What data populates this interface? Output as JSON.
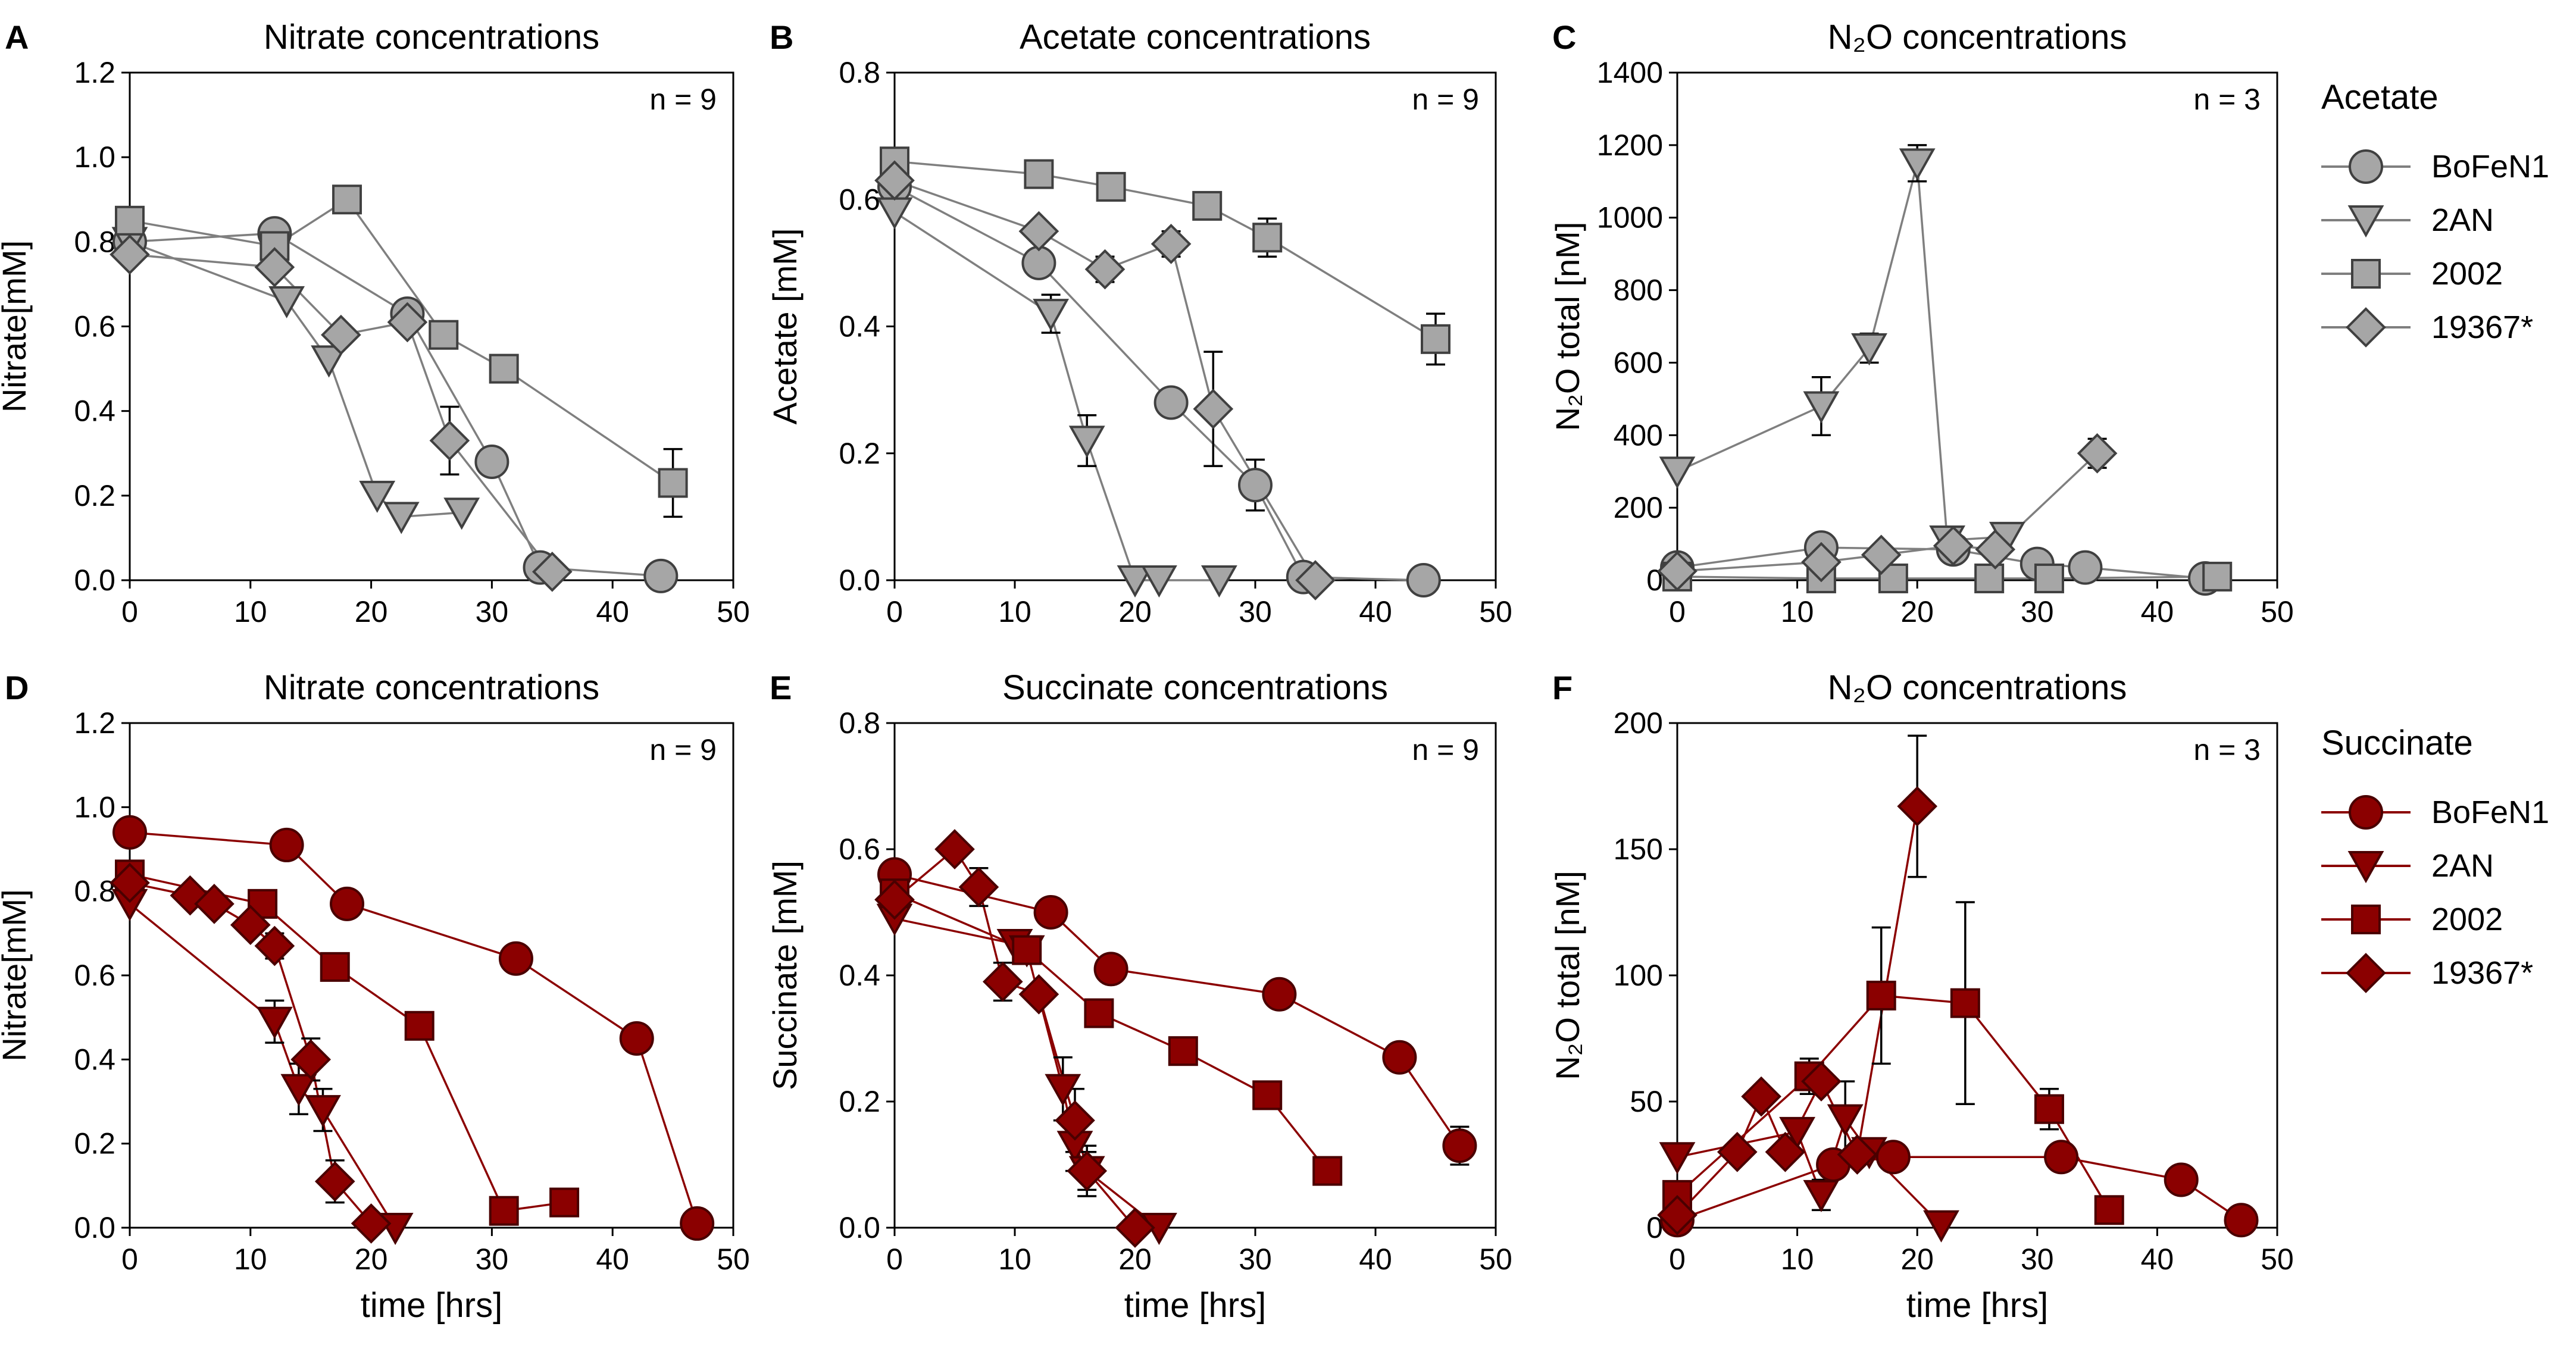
{
  "colors": {
    "acetate": "#a6a6a6",
    "acetate_dark": "#404040",
    "succinate": "#8b0000",
    "succinate_dark": "#4a0000"
  },
  "legends": [
    {
      "title": "Acetate",
      "scheme": "acetate",
      "items": [
        {
          "label": "BoFeN1",
          "marker": "circle"
        },
        {
          "label": "2AN",
          "marker": "triangle-down"
        },
        {
          "label": "2002",
          "marker": "square"
        },
        {
          "label": "19367*",
          "marker": "diamond"
        }
      ]
    },
    {
      "title": "Succinate",
      "scheme": "succinate",
      "items": [
        {
          "label": "BoFeN1",
          "marker": "circle"
        },
        {
          "label": "2AN",
          "marker": "triangle-down"
        },
        {
          "label": "2002",
          "marker": "square"
        },
        {
          "label": "19367*",
          "marker": "diamond"
        }
      ]
    }
  ],
  "chart_data": [
    {
      "panel": "A",
      "type": "line",
      "scheme": "acetate",
      "title": "Nitrate concentrations",
      "n_label": "n = 9",
      "xlabel": "",
      "ylabel": "Nitrate[mM]",
      "xlim": [
        0,
        50
      ],
      "ylim": [
        0,
        1.2
      ],
      "xticks": [
        "0",
        "10",
        "20",
        "30",
        "40",
        "50"
      ],
      "yticks": [
        "0.0",
        "0.2",
        "0.4",
        "0.6",
        "0.8",
        "1.0",
        "1.2"
      ],
      "series": [
        {
          "name": "BoFeN1",
          "marker": "circle",
          "x": [
            0,
            12,
            23,
            30,
            34,
            44
          ],
          "y": [
            0.8,
            0.82,
            0.63,
            0.28,
            0.03,
            0.01
          ],
          "err": [
            0,
            0,
            0,
            0,
            0,
            0
          ]
        },
        {
          "name": "2AN",
          "marker": "triangle-down",
          "x": [
            0,
            13,
            16.5,
            20.5,
            22.5,
            27.5
          ],
          "y": [
            0.8,
            0.66,
            0.52,
            0.2,
            0.15,
            0.16
          ],
          "err": [
            0,
            0,
            0,
            0,
            0,
            0
          ]
        },
        {
          "name": "2002",
          "marker": "square",
          "x": [
            0,
            12,
            18,
            26,
            31,
            45
          ],
          "y": [
            0.85,
            0.79,
            0.9,
            0.58,
            0.5,
            0.23
          ],
          "err": [
            0,
            0,
            0,
            0,
            0,
            0.08
          ]
        },
        {
          "name": "19367*",
          "marker": "diamond",
          "x": [
            0,
            12,
            17.5,
            23,
            26.5,
            35
          ],
          "y": [
            0.77,
            0.74,
            0.58,
            0.61,
            0.33,
            0.02
          ],
          "err": [
            0,
            0,
            0,
            0,
            0.08,
            0
          ]
        }
      ]
    },
    {
      "panel": "B",
      "type": "line",
      "scheme": "acetate",
      "title": "Acetate concentrations",
      "n_label": "n = 9",
      "xlabel": "",
      "ylabel": "Acetate [mM]",
      "xlim": [
        0,
        50
      ],
      "ylim": [
        0,
        0.8
      ],
      "xticks": [
        "0",
        "10",
        "20",
        "30",
        "40",
        "50"
      ],
      "yticks": [
        "0.0",
        "0.2",
        "0.4",
        "0.6",
        "0.8"
      ],
      "series": [
        {
          "name": "BoFeN1",
          "marker": "circle",
          "x": [
            0,
            12,
            23,
            30,
            34,
            44
          ],
          "y": [
            0.62,
            0.5,
            0.28,
            0.15,
            0.005,
            0.0
          ],
          "err": [
            0,
            0,
            0,
            0.04,
            0,
            0
          ]
        },
        {
          "name": "2AN",
          "marker": "triangle-down",
          "x": [
            0,
            13,
            16,
            20,
            22,
            27
          ],
          "y": [
            0.58,
            0.42,
            0.22,
            0.0,
            0.0,
            0.0
          ],
          "err": [
            0,
            0.03,
            0.04,
            0,
            0,
            0
          ]
        },
        {
          "name": "2002",
          "marker": "square",
          "x": [
            0,
            12,
            18,
            26,
            31,
            45
          ],
          "y": [
            0.66,
            0.64,
            0.62,
            0.59,
            0.54,
            0.38
          ],
          "err": [
            0,
            0,
            0,
            0,
            0.03,
            0.04
          ]
        },
        {
          "name": "19367*",
          "marker": "diamond",
          "x": [
            0,
            12,
            17.5,
            23,
            26.5,
            35
          ],
          "y": [
            0.63,
            0.55,
            0.49,
            0.53,
            0.27,
            0.0
          ],
          "err": [
            0,
            0,
            0.02,
            0.02,
            0.09,
            0
          ]
        }
      ]
    },
    {
      "panel": "C",
      "type": "line",
      "scheme": "acetate",
      "title": "N₂O concentrations",
      "n_label": "n = 3",
      "xlabel": "",
      "ylabel": "N₂O total [nM]",
      "xlim": [
        0,
        50
      ],
      "ylim": [
        0,
        1400
      ],
      "xticks": [
        "0",
        "10",
        "20",
        "30",
        "40",
        "50"
      ],
      "yticks": [
        "0",
        "200",
        "400",
        "600",
        "800",
        "1000",
        "1200",
        "1400"
      ],
      "series": [
        {
          "name": "BoFeN1",
          "marker": "circle",
          "x": [
            0,
            12,
            23,
            30,
            34,
            44
          ],
          "y": [
            35,
            90,
            85,
            45,
            35,
            5
          ],
          "err": [
            0,
            0,
            0,
            0,
            0,
            0
          ]
        },
        {
          "name": "2AN",
          "marker": "triangle-down",
          "x": [
            0,
            12,
            16,
            20,
            22.5,
            27.5
          ],
          "y": [
            300,
            480,
            640,
            1150,
            110,
            120
          ],
          "err": [
            0,
            80,
            40,
            50,
            0,
            0
          ]
        },
        {
          "name": "2002",
          "marker": "square",
          "x": [
            0,
            12,
            18,
            26,
            31,
            45
          ],
          "y": [
            10,
            5,
            5,
            5,
            5,
            10
          ],
          "err": [
            0,
            0,
            0,
            0,
            0,
            0
          ]
        },
        {
          "name": "19367*",
          "marker": "diamond",
          "x": [
            0,
            12,
            17,
            23,
            26.5,
            35
          ],
          "y": [
            25,
            50,
            70,
            95,
            85,
            350
          ],
          "err": [
            0,
            0,
            0,
            0,
            0,
            40
          ]
        }
      ]
    },
    {
      "panel": "D",
      "type": "line",
      "scheme": "succinate",
      "title": "Nitrate concentrations",
      "n_label": "n = 9",
      "xlabel": "time [hrs]",
      "ylabel": "Nitrate[mM]",
      "xlim": [
        0,
        50
      ],
      "ylim": [
        0,
        1.2
      ],
      "xticks": [
        "0",
        "10",
        "20",
        "30",
        "40",
        "50"
      ],
      "yticks": [
        "0.0",
        "0.2",
        "0.4",
        "0.6",
        "0.8",
        "1.0",
        "1.2"
      ],
      "series": [
        {
          "name": "BoFeN1",
          "marker": "circle",
          "x": [
            0,
            13,
            18,
            32,
            42,
            47
          ],
          "y": [
            0.94,
            0.91,
            0.77,
            0.64,
            0.45,
            0.01
          ],
          "err": [
            0,
            0,
            0,
            0,
            0,
            0
          ]
        },
        {
          "name": "2AN",
          "marker": "triangle-down",
          "x": [
            0,
            12,
            14,
            16,
            22
          ],
          "y": [
            0.77,
            0.49,
            0.33,
            0.28,
            0.0
          ],
          "err": [
            0,
            0.05,
            0.06,
            0.05,
            0
          ]
        },
        {
          "name": "2002",
          "marker": "square",
          "x": [
            0,
            11,
            17,
            24,
            31,
            36
          ],
          "y": [
            0.84,
            0.77,
            0.62,
            0.48,
            0.04,
            0.06
          ],
          "err": [
            0,
            0,
            0,
            0,
            0,
            0
          ]
        },
        {
          "name": "19367*",
          "marker": "diamond",
          "x": [
            0,
            5,
            7,
            10,
            12,
            15,
            17,
            20
          ],
          "y": [
            0.82,
            0.79,
            0.77,
            0.72,
            0.67,
            0.4,
            0.11,
            0.01
          ],
          "err": [
            0,
            0,
            0,
            0,
            0.03,
            0.05,
            0.05,
            0
          ]
        }
      ]
    },
    {
      "panel": "E",
      "type": "line",
      "scheme": "succinate",
      "title": "Succinate concentrations",
      "n_label": "n = 9",
      "xlabel": "time [hrs]",
      "ylabel": "Succinate [mM]",
      "xlim": [
        0,
        50
      ],
      "ylim": [
        0,
        0.8
      ],
      "xticks": [
        "0",
        "10",
        "20",
        "30",
        "40",
        "50"
      ],
      "yticks": [
        "0.0",
        "0.2",
        "0.4",
        "0.6",
        "0.8"
      ],
      "series": [
        {
          "name": "BoFeN1",
          "marker": "circle",
          "x": [
            0,
            13,
            18,
            32,
            42,
            47
          ],
          "y": [
            0.56,
            0.5,
            0.41,
            0.37,
            0.27,
            0.13
          ],
          "err": [
            0,
            0,
            0,
            0,
            0.02,
            0.03
          ]
        },
        {
          "name": "2AN",
          "marker": "triangle-down",
          "x": [
            0,
            10,
            11,
            14,
            15,
            16,
            22
          ],
          "y": [
            0.49,
            0.45,
            0.44,
            0.22,
            0.13,
            0.09,
            0.0
          ],
          "err": [
            0,
            0,
            0,
            0.05,
            0.04,
            0.03,
            0
          ]
        },
        {
          "name": "2002",
          "marker": "square",
          "x": [
            0,
            11,
            17,
            24,
            31,
            36
          ],
          "y": [
            0.53,
            0.44,
            0.34,
            0.28,
            0.21,
            0.09
          ],
          "err": [
            0,
            0,
            0,
            0,
            0,
            0.02
          ]
        },
        {
          "name": "19367*",
          "marker": "diamond",
          "x": [
            0,
            5,
            7,
            9,
            12,
            15,
            16,
            20
          ],
          "y": [
            0.52,
            0.6,
            0.54,
            0.39,
            0.37,
            0.17,
            0.09,
            0.0
          ],
          "err": [
            0,
            0,
            0.03,
            0.03,
            0,
            0.05,
            0.04,
            0
          ]
        }
      ]
    },
    {
      "panel": "F",
      "type": "line",
      "scheme": "succinate",
      "title": "N₂O concentrations",
      "n_label": "n = 3",
      "xlabel": "time [hrs]",
      "ylabel": "N₂O total [nM]",
      "xlim": [
        0,
        50
      ],
      "ylim": [
        0,
        200
      ],
      "xticks": [
        "0",
        "10",
        "20",
        "30",
        "40",
        "50"
      ],
      "yticks": [
        "0",
        "50",
        "100",
        "150",
        "200"
      ],
      "series": [
        {
          "name": "BoFeN1",
          "marker": "circle",
          "x": [
            0,
            13,
            18,
            32,
            42,
            47
          ],
          "y": [
            3,
            25,
            28,
            28,
            19,
            3
          ],
          "err": [
            0,
            0,
            0,
            0,
            0,
            0
          ]
        },
        {
          "name": "2AN",
          "marker": "triangle-down",
          "x": [
            0,
            10,
            12,
            14,
            16,
            22
          ],
          "y": [
            28,
            38,
            13,
            43,
            30,
            1
          ],
          "err": [
            0,
            0,
            6,
            15,
            0,
            0
          ]
        },
        {
          "name": "2002",
          "marker": "square",
          "x": [
            0,
            11,
            17,
            24,
            31,
            36
          ],
          "y": [
            13,
            60,
            92,
            89,
            47,
            7
          ],
          "err": [
            0,
            7,
            27,
            40,
            8,
            0
          ]
        },
        {
          "name": "19367*",
          "marker": "diamond",
          "x": [
            0,
            5,
            7,
            9,
            12,
            15,
            20
          ],
          "y": [
            5,
            30,
            52,
            30,
            58,
            29,
            167
          ],
          "err": [
            0,
            0,
            0,
            0,
            0,
            0,
            28
          ]
        }
      ]
    }
  ]
}
